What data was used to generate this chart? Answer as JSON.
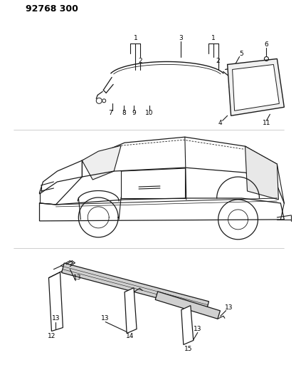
{
  "title": "92768 300",
  "bg_color": "#ffffff",
  "line_color": "#1a1a1a",
  "fig_width": 4.16,
  "fig_height": 5.33,
  "dpi": 100
}
